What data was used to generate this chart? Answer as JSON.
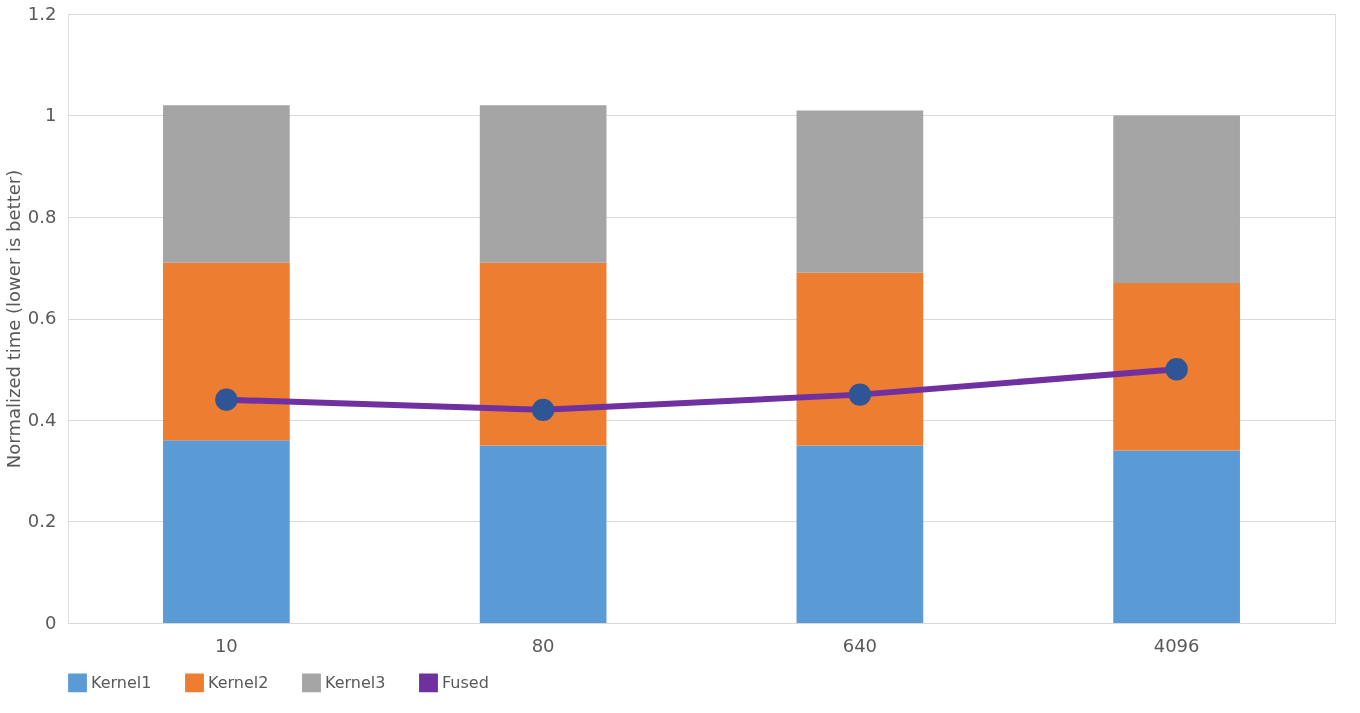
{
  "chart_data": {
    "type": "bar",
    "stacked": true,
    "ylabel": "Normalized time (lower is better)",
    "categories": [
      "10",
      "80",
      "640",
      "4096"
    ],
    "series": [
      {
        "name": "Kernel1",
        "color": "#5b9bd5",
        "values": [
          0.36,
          0.35,
          0.35,
          0.34
        ]
      },
      {
        "name": "Kernel2",
        "color": "#ed7d31",
        "values": [
          0.35,
          0.36,
          0.34,
          0.33
        ]
      },
      {
        "name": "Kernel3",
        "color": "#a5a5a5",
        "values": [
          0.31,
          0.31,
          0.32,
          0.33
        ]
      },
      {
        "name": "Fused",
        "type": "line",
        "color": "#7030a0",
        "values": [
          0.44,
          0.42,
          0.45,
          0.5
        ]
      }
    ],
    "ylim": [
      0,
      1.2
    ],
    "yticks": [
      0,
      0.2,
      0.4,
      0.6,
      0.8,
      1,
      1.2
    ],
    "grid": "y",
    "legend": "bottom",
    "marker": "circle"
  }
}
